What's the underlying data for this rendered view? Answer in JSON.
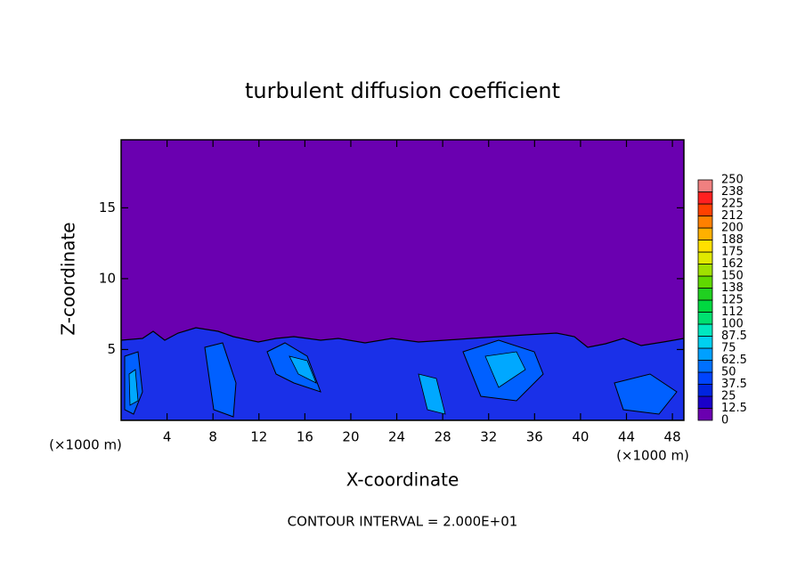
{
  "chart_data": {
    "type": "contour",
    "title": "turbulent diffusion coefficient",
    "xlabel": "X-coordinate",
    "ylabel": "Z-coordinate",
    "unit_labels": [
      "(×1000 m)",
      "(×1000 m)"
    ],
    "footer": "CONTOUR INTERVAL = 2.000E+01",
    "xlim": [
      0,
      49
    ],
    "xticks": [
      4,
      8,
      12,
      16,
      20,
      24,
      28,
      32,
      36,
      40,
      44,
      48
    ],
    "ylim": [
      0,
      19.8
    ],
    "yticks": [
      5,
      10,
      15
    ],
    "colorbar": {
      "ticks": [
        0,
        12.5,
        25,
        37.5,
        50,
        62.5,
        75,
        87.5,
        100,
        {
          "value": 112.5,
          "label": "112"
        },
        125,
        {
          "value": 137.5,
          "label": "138"
        },
        150,
        {
          "value": 162.5,
          "label": "162"
        },
        175,
        {
          "value": 187.5,
          "label": "188"
        },
        200,
        {
          "value": 212.5,
          "label": "212"
        },
        225,
        {
          "value": 237.5,
          "label": "238"
        },
        250
      ],
      "colors": [
        "#6a00b0",
        "#1a00c8",
        "#0024e0",
        "#0044ff",
        "#0070ff",
        "#00a0ff",
        "#00d0f0",
        "#00e8c0",
        "#00e070",
        "#00d840",
        "#20d020",
        "#60d800",
        "#a0e000",
        "#e0e800",
        "#ffe000",
        "#ffb000",
        "#ff8000",
        "#ff4000",
        "#ff2020",
        "#f08080"
      ]
    }
  }
}
